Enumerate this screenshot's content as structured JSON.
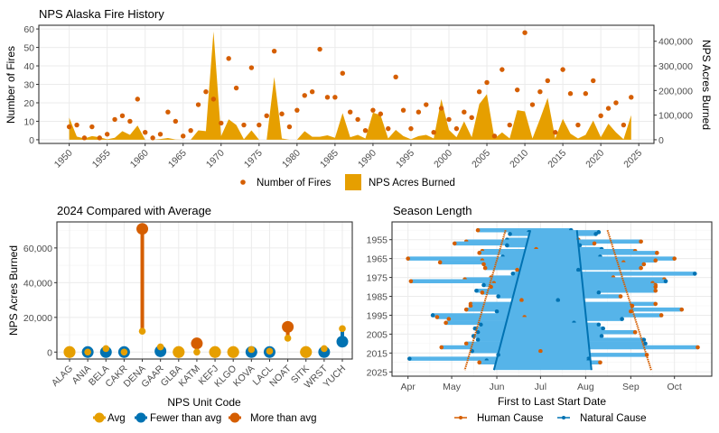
{
  "colors": {
    "human": "#D55E00",
    "natural": "#0072B2",
    "avg": "#E69F00",
    "fewer": "#0072B2",
    "more": "#D55E00",
    "area": "#E69F00",
    "fires": "#D55E00",
    "season_bar": "#56B4E9"
  },
  "chart_data": [
    {
      "type": "area+scatter",
      "title": "NPS Alaska Fire History",
      "xlabel": "",
      "ylabel": "Number of Fires",
      "ylabel_right": "NPS Acres Burned",
      "xlim": [
        1946,
        2027
      ],
      "ylim": [
        -2,
        62
      ],
      "ylim_right": [
        -15000,
        465000
      ],
      "xticks": [
        "1950",
        "1955",
        "1960",
        "1965",
        "1970",
        "1975",
        "1980",
        "1985",
        "1990",
        "1995",
        "2000",
        "2005",
        "2010",
        "2015",
        "2020",
        "2025"
      ],
      "yticks": [
        "0",
        "10",
        "20",
        "30",
        "40",
        "50",
        "60"
      ],
      "yticks_right": [
        "0",
        "100,000",
        "200,000",
        "300,000",
        "400,000"
      ],
      "grid": true,
      "legend": {
        "placement": "bottom",
        "items": [
          "Number of Fires",
          "NPS Acres Burned"
        ]
      },
      "years": [
        1950,
        1951,
        1952,
        1953,
        1954,
        1955,
        1956,
        1957,
        1958,
        1959,
        1960,
        1961,
        1962,
        1963,
        1964,
        1965,
        1966,
        1967,
        1968,
        1969,
        1970,
        1971,
        1972,
        1973,
        1974,
        1975,
        1976,
        1977,
        1978,
        1979,
        1980,
        1981,
        1982,
        1983,
        1984,
        1985,
        1986,
        1987,
        1988,
        1989,
        1990,
        1991,
        1992,
        1993,
        1994,
        1995,
        1996,
        1997,
        1998,
        1999,
        2000,
        2001,
        2002,
        2003,
        2004,
        2005,
        2006,
        2007,
        2008,
        2009,
        2010,
        2011,
        2012,
        2013,
        2014,
        2015,
        2016,
        2017,
        2018,
        2019,
        2020,
        2021,
        2022,
        2023,
        2024
      ],
      "series": [
        {
          "name": "Number of Fires",
          "type": "scatter",
          "values": [
            7,
            8,
            1,
            7,
            1,
            3,
            11,
            13,
            10,
            22,
            4,
            1,
            3,
            15,
            10,
            2,
            5,
            19,
            26,
            22,
            9,
            44,
            28,
            8,
            39,
            8,
            13,
            48,
            14,
            7,
            16,
            24,
            26,
            49,
            23,
            23,
            36,
            15,
            11,
            5,
            16,
            14,
            6,
            34,
            16,
            6,
            15,
            19,
            4,
            17,
            11,
            6,
            15,
            12,
            26,
            31,
            2,
            38,
            8,
            27,
            58,
            19,
            26,
            32,
            4,
            38,
            25,
            8,
            25,
            32,
            13,
            17,
            20,
            8,
            23
          ]
        },
        {
          "name": "NPS Acres Burned",
          "type": "area",
          "values": [
            90000,
            13000,
            5000,
            15000,
            10000,
            2000,
            8000,
            35000,
            20000,
            58000,
            0,
            0,
            3000,
            7000,
            1000,
            0,
            0,
            38000,
            35000,
            440000,
            15000,
            83000,
            60000,
            2000,
            38000,
            0,
            0,
            255000,
            5000,
            0,
            0,
            35000,
            12000,
            12000,
            18000,
            8000,
            108000,
            10000,
            20000,
            5000,
            110000,
            100000,
            5000,
            40000,
            15000,
            2000,
            15000,
            20000,
            5000,
            165000,
            40000,
            10000,
            75000,
            10000,
            145000,
            185000,
            5000,
            30000,
            5000,
            120000,
            115000,
            5000,
            85000,
            170000,
            5000,
            85000,
            25000,
            5000,
            20000,
            78000,
            10000,
            65000,
            30000,
            2000,
            100000
          ]
        }
      ]
    },
    {
      "type": "lollipop",
      "title": "2024 Compared with Average",
      "xlabel": "NPS Unit Code",
      "ylabel": "NPS Acres Burned",
      "ylim": [
        -4000,
        75000
      ],
      "yticks": [
        "0",
        "20,000",
        "40,000",
        "60,000"
      ],
      "grid": true,
      "legend": {
        "placement": "bottom",
        "items": [
          "Avg",
          "Fewer than avg",
          "More than avg"
        ]
      },
      "categories": [
        "ALAG",
        "ANIA",
        "BELA",
        "CAKR",
        "DENA",
        "GAAR",
        "GLBA",
        "KATM",
        "KEFJ",
        "KLGO",
        "KOVA",
        "LACL",
        "NOAT",
        "SITK",
        "WRST",
        "YUCH"
      ],
      "avg": [
        0,
        0,
        2000,
        0,
        12000,
        3000,
        0,
        0,
        0,
        0,
        1500,
        500,
        8000,
        0,
        2000,
        13500
      ],
      "acres_2024": [
        0,
        0,
        0,
        0,
        71000,
        500,
        0,
        5000,
        0,
        0,
        0,
        0,
        14500,
        0,
        0,
        6000
      ],
      "status": [
        "Avg",
        "Fewer than avg",
        "Fewer than avg",
        "Fewer than avg",
        "More than avg",
        "Fewer than avg",
        "Avg",
        "More than avg",
        "Avg",
        "Avg",
        "Fewer than avg",
        "Fewer than avg",
        "More than avg",
        "Avg",
        "Fewer than avg",
        "Fewer than avg"
      ]
    },
    {
      "type": "range",
      "title": "Season Length",
      "xlabel": "First to Last Start Date",
      "ylabel": "",
      "xticks": [
        "Apr",
        "May",
        "Jun",
        "Jul",
        "Aug",
        "Sep",
        "Oct"
      ],
      "yticks": [
        "1955",
        "1965",
        "1975",
        "1985",
        "1995",
        "2005",
        "2015",
        "2025"
      ],
      "ylim": [
        2027,
        1948
      ],
      "grid": true,
      "legend": {
        "placement": "bottom",
        "items": [
          "Human Cause",
          "Natural Cause"
        ]
      },
      "trends": [
        {
          "name": "Human Cause",
          "edge": "first",
          "from": [
            1950,
            "06-07"
          ],
          "to": [
            2024,
            "05-10"
          ]
        },
        {
          "name": "Natural Cause",
          "edge": "first",
          "from": [
            1950,
            "06-24"
          ],
          "to": [
            2024,
            "05-30"
          ]
        },
        {
          "name": "Natural Cause",
          "edge": "last",
          "from": [
            1950,
            "07-26"
          ],
          "to": [
            2024,
            "08-05"
          ]
        },
        {
          "name": "Human Cause",
          "edge": "last",
          "from": [
            1950,
            "08-16"
          ],
          "to": [
            2024,
            "09-15"
          ]
        }
      ],
      "rows": [
        [
          1950,
          "05-19",
          "07-22",
          "H",
          "N"
        ],
        [
          1951,
          "06-23",
          "08-10",
          "N",
          "N"
        ],
        [
          1952,
          "06-10",
          "08-08",
          "N",
          "N"
        ],
        [
          1955,
          "06-08",
          "07-27",
          "N",
          "H"
        ],
        [
          1956,
          "05-11",
          "09-08",
          "H",
          "H"
        ],
        [
          1957,
          "05-03",
          "08-07",
          "H",
          "H"
        ],
        [
          1958,
          "06-08",
          "07-28",
          "N",
          "N"
        ],
        [
          1960,
          "06-28",
          "08-12",
          "H",
          "N"
        ],
        [
          1961,
          "05-22",
          "09-04",
          "H",
          "H"
        ],
        [
          1962,
          "05-20",
          "09-19",
          "H",
          "H"
        ],
        [
          1964,
          "06-05",
          "08-11",
          "N",
          "N"
        ],
        [
          1965,
          "04-01",
          "10-01",
          "H",
          "H"
        ],
        [
          1966,
          "05-22",
          "09-18",
          "H",
          "H"
        ],
        [
          1967,
          "04-23",
          "08-27",
          "H",
          "H"
        ],
        [
          1968,
          "05-23",
          "09-10",
          "H",
          "H"
        ],
        [
          1970,
          "05-24",
          "09-08",
          "H",
          "H"
        ],
        [
          1971,
          "06-15",
          "07-27",
          "H",
          "N"
        ],
        [
          1973,
          "06-12",
          "10-15",
          "N",
          "N"
        ],
        [
          1975,
          "05-28",
          "08-20",
          "H",
          "H"
        ],
        [
          1976,
          "05-10",
          "09-24",
          "H",
          "H"
        ],
        [
          1977,
          "04-03",
          "09-25",
          "H",
          "N"
        ],
        [
          1978,
          "05-30",
          "09-16",
          "H",
          "H"
        ],
        [
          1979,
          "05-23",
          "09-18",
          "N",
          "H"
        ],
        [
          1980,
          "05-28",
          "09-18",
          "H",
          "H"
        ],
        [
          1982,
          "05-18",
          "09-18",
          "N",
          "H"
        ],
        [
          1983,
          "05-22",
          "08-10",
          "H",
          "N"
        ],
        [
          1985,
          "06-02",
          "08-25",
          "N",
          "H"
        ],
        [
          1987,
          "06-18",
          "07-13",
          "H",
          "N"
        ],
        [
          1989,
          "05-14",
          "09-18",
          "H",
          "H"
        ],
        [
          1990,
          "05-14",
          "09-02",
          "H",
          "H"
        ],
        [
          1992,
          "05-11",
          "10-06",
          "H",
          "H"
        ],
        [
          1993,
          "06-01",
          "09-01",
          "N",
          "H"
        ],
        [
          1995,
          "04-18",
          "09-22",
          "N",
          "H"
        ],
        [
          1996,
          "04-21",
          "06-20",
          "H",
          "H"
        ],
        [
          1997,
          "04-29",
          "08-26",
          "H",
          "N"
        ],
        [
          1999,
          "04-27",
          "07-24",
          "H",
          "N"
        ],
        [
          2000,
          "05-21",
          "08-10",
          "N",
          "N"
        ],
        [
          2002,
          "05-17",
          "08-13",
          "N",
          "N"
        ],
        [
          2004,
          "05-19",
          "09-04",
          "N",
          "H"
        ],
        [
          2006,
          "05-16",
          "08-12",
          "N",
          "N"
        ],
        [
          2008,
          "05-19",
          "09-10",
          "N",
          "N"
        ],
        [
          2010,
          "05-11",
          "09-11",
          "H",
          "N"
        ],
        [
          2012,
          "04-24",
          "10-17",
          "H",
          "H"
        ],
        [
          2014,
          "05-15",
          "07-01",
          "N",
          "H"
        ],
        [
          2016,
          "06-02",
          "09-12",
          "N",
          "H"
        ],
        [
          2018,
          "04-02",
          "08-03",
          "N",
          "N"
        ],
        [
          2019,
          "05-25",
          "08-03",
          "N",
          "N"
        ],
        [
          2020,
          "05-20",
          "08-11",
          "H",
          "H"
        ]
      ]
    }
  ]
}
